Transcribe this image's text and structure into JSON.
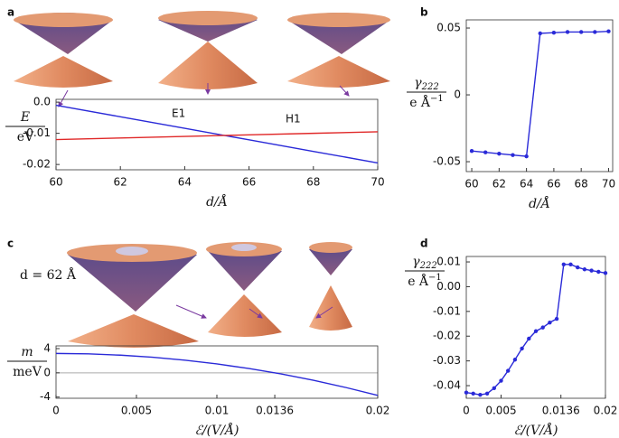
{
  "chart_data": [
    {
      "type": "line",
      "panel": "a",
      "x": [
        60,
        62,
        64,
        66,
        68,
        70
      ],
      "series": [
        {
          "name": "E1",
          "color": "#2a2ad8",
          "values": [
            -0.001,
            -0.0047,
            -0.0084,
            -0.0121,
            -0.0158,
            -0.0195
          ]
        },
        {
          "name": "H1",
          "color": "#e02828",
          "values": [
            -0.012,
            -0.0115,
            -0.011,
            -0.0105,
            -0.01,
            -0.0095
          ]
        }
      ],
      "xlim": [
        60,
        70
      ],
      "xticks": [
        60,
        62,
        64,
        66,
        68,
        70
      ],
      "ylim": [
        -0.0217,
        0.0009
      ],
      "yticks": [
        {
          "value": 0,
          "label": "0.0"
        },
        -0.01,
        -0.02
      ],
      "x_label": "d/Å",
      "y_label": {
        "numerator": "E",
        "denominator": "eV"
      }
    },
    {
      "type": "line",
      "panel": "b",
      "markers": true,
      "x": [
        60,
        61,
        62,
        63,
        64,
        65,
        66,
        67,
        68,
        69,
        70
      ],
      "series": [
        {
          "color": "#2a2ad8",
          "values": [
            -0.042,
            -0.043,
            -0.044,
            -0.045,
            -0.046,
            0.046,
            0.0465,
            0.047,
            0.047,
            0.047,
            0.0475
          ]
        }
      ],
      "xlim": [
        59.6,
        70.3
      ],
      "xticks": [
        60,
        62,
        64,
        66,
        68,
        70
      ],
      "ylim": [
        -0.0574,
        0.0561
      ],
      "yticks": [
        -0.05,
        0,
        0.05
      ],
      "x_label": "d/Å",
      "y_label": {
        "numerator": "γ",
        "numerator_sub": "222",
        "denominator": "e Å",
        "denominator_sup": "−1"
      }
    },
    {
      "type": "line",
      "panel": "c",
      "zero_line": true,
      "annotation": "d = 62 Å",
      "x": [
        0,
        0.002,
        0.004,
        0.006,
        0.008,
        0.01,
        0.012,
        0.014,
        0.016,
        0.018,
        0.02
      ],
      "series": [
        {
          "color": "#2a2ad8",
          "values": [
            3.2,
            3.13,
            2.92,
            2.58,
            2.09,
            1.47,
            0.71,
            -0.19,
            -1.23,
            -2.41,
            -3.72
          ]
        }
      ],
      "xlim": [
        0,
        0.02
      ],
      "xticks": [
        0,
        0.005,
        0.01,
        0.0136,
        0.02
      ],
      "ylim": [
        -4.2,
        4.45
      ],
      "yticks": [
        4,
        0,
        -4
      ],
      "x_label": "ℰ/(V/Å)",
      "y_label": {
        "numerator": "m",
        "denominator": "meV"
      }
    },
    {
      "type": "line",
      "panel": "d",
      "markers": true,
      "x": [
        0,
        0.001,
        0.002,
        0.003,
        0.004,
        0.005,
        0.006,
        0.007,
        0.008,
        0.009,
        0.01,
        0.011,
        0.012,
        0.013,
        0.014,
        0.015,
        0.016,
        0.017,
        0.018,
        0.019,
        0.02
      ],
      "series": [
        {
          "color": "#2a2ad8",
          "values": [
            -0.0428,
            -0.0432,
            -0.0437,
            -0.0432,
            -0.041,
            -0.038,
            -0.034,
            -0.0295,
            -0.025,
            -0.021,
            -0.018,
            -0.0165,
            -0.0145,
            -0.013,
            0.009,
            0.009,
            0.0078,
            0.007,
            0.0065,
            0.006,
            0.0055
          ]
        }
      ],
      "xlim": [
        0,
        0.02
      ],
      "xticks": [
        0,
        0.005,
        0.0136,
        0.02
      ],
      "ylim": [
        -0.0451,
        0.0122
      ],
      "yticks": [
        0.01,
        {
          "value": 0,
          "label": "0.00"
        },
        -0.01,
        -0.02,
        -0.03,
        -0.04
      ],
      "x_label": "ℰ/(V/Å)",
      "y_label": {
        "numerator": "γ",
        "numerator_sub": "222",
        "denominator": "e Å",
        "denominator_sup": "−1"
      }
    }
  ]
}
